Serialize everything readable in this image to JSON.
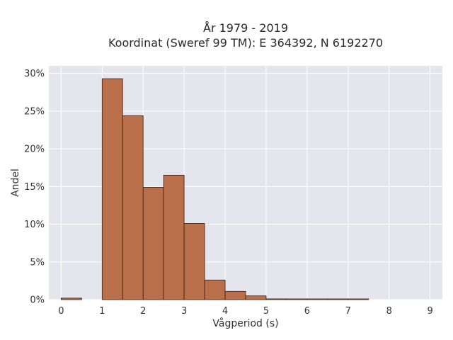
{
  "chart_data": {
    "type": "bar",
    "title_lines": [
      "År 1979 - 2019",
      "Koordinat (Sweref 99 TM): E 364392, N 6192270"
    ],
    "xlabel": "Vågperiod (s)",
    "ylabel": "Andel",
    "xlim": [
      -0.3,
      9.3
    ],
    "ylim": [
      0,
      0.31
    ],
    "x_ticks": [
      "0",
      "1",
      "2",
      "3",
      "4",
      "5",
      "6",
      "7",
      "8",
      "9"
    ],
    "y_ticks": [
      "0%",
      "5%",
      "10%",
      "15%",
      "20%",
      "25%",
      "30%"
    ],
    "bin_width": 0.5,
    "bins": [
      {
        "x0": 0.0,
        "value": 0.002
      },
      {
        "x0": 0.5,
        "value": 0.0
      },
      {
        "x0": 1.0,
        "value": 0.293
      },
      {
        "x0": 1.5,
        "value": 0.244
      },
      {
        "x0": 2.0,
        "value": 0.149
      },
      {
        "x0": 2.5,
        "value": 0.165
      },
      {
        "x0": 3.0,
        "value": 0.101
      },
      {
        "x0": 3.5,
        "value": 0.026
      },
      {
        "x0": 4.0,
        "value": 0.011
      },
      {
        "x0": 4.5,
        "value": 0.005
      },
      {
        "x0": 5.0,
        "value": 0.001
      },
      {
        "x0": 5.5,
        "value": 0.0005
      },
      {
        "x0": 6.0,
        "value": 0.0005
      },
      {
        "x0": 6.5,
        "value": 0.0003
      },
      {
        "x0": 7.0,
        "value": 0.0003
      }
    ],
    "grid": true,
    "colors": {
      "plot_background": "#e5e5ee",
      "grid": "#ffffff",
      "bar_fill": "#b96f4a",
      "bar_stroke": "#3d2114"
    }
  }
}
